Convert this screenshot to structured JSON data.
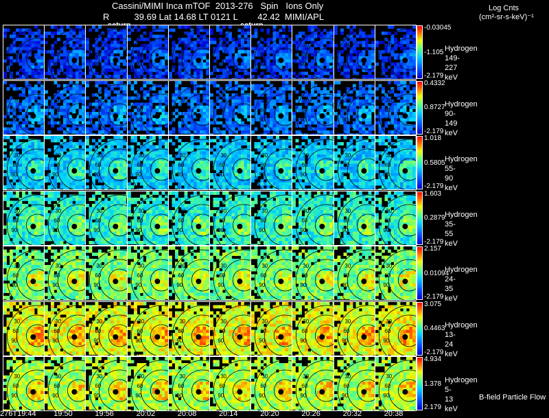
{
  "header": {
    "line1": "Cassini/MIMI Inca mTOF  2013-276   Spin   Ions Only",
    "line2": "R          39.69 Lat 14.68 LT 0121 L        42.42  MIMI/APL",
    "saturn_labels": [
      "saturn",
      "saturn"
    ]
  },
  "units": {
    "line1": "Log Cnts",
    "line2": "(cm²-sr-s-keV)⁻¹"
  },
  "times": [
    "276T19:44",
    "19:50",
    "19:56",
    "20:02",
    "20:08",
    "20:14",
    "20:20",
    "20:26",
    "20:32",
    "20:38"
  ],
  "rows": [
    {
      "species": "Hydrogen",
      "energy": "149-227 keV",
      "max": "-0.03045",
      "mid": "-1.105",
      "min": "-2.179",
      "level": 0.12,
      "color": "#0a1cd4"
    },
    {
      "species": "Hydrogen",
      "energy": "90-149 keV",
      "max": "0.4332",
      "mid": "0.8727",
      "min": "-2.179",
      "level": 0.22,
      "color": "#1050f0"
    },
    {
      "species": "Hydrogen",
      "energy": "55-90 keV",
      "max": "1.018",
      "mid": "0.5805",
      "min": "-2.179",
      "level": 0.38,
      "color": "#18a8f0"
    },
    {
      "species": "Hydrogen",
      "energy": "35-55 keV",
      "max": "1.603",
      "mid": "0.2879",
      "min": "-2.179",
      "level": 0.48,
      "color": "#20d0f0"
    },
    {
      "species": "Hydrogen",
      "energy": "24-35 keV",
      "max": "2.157",
      "mid": "0.01094",
      "min": "-2.179",
      "level": 0.58,
      "color": "#60e898"
    },
    {
      "species": "Hydrogen",
      "energy": "13-24 keV",
      "max": "3.075",
      "mid": "0.4463",
      "min": "-2.179",
      "level": 0.7,
      "color": "#b8f040"
    },
    {
      "species": "Hydrogen",
      "energy": "5-13 keV",
      "max": "4.934",
      "mid": "1.378",
      "min": "2.179",
      "level": 0.64,
      "color": "#a8f050"
    }
  ],
  "contour_labels": [
    "30",
    "60",
    "90"
  ],
  "footer_note": "B-field Particle Flow"
}
